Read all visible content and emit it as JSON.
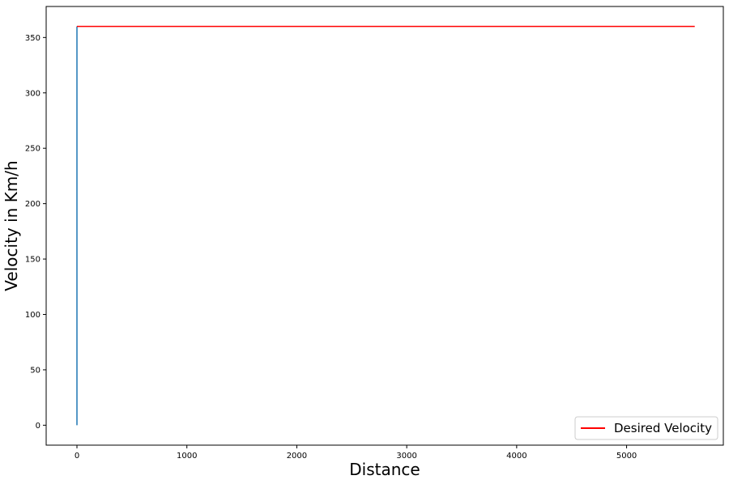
{
  "chart_data": {
    "type": "line",
    "title": "",
    "xlabel": "Distance",
    "ylabel": "Velocity in Km/h",
    "xlim": [
      -280,
      5880
    ],
    "ylim": [
      -18,
      378
    ],
    "x_ticks": [
      0,
      1000,
      2000,
      3000,
      4000,
      5000
    ],
    "y_ticks": [
      0,
      50,
      100,
      150,
      200,
      250,
      300,
      350
    ],
    "grid": false,
    "legend_position": "lower-right",
    "series": [
      {
        "color": "#1f77b4",
        "x": [
          0,
          0
        ],
        "y": [
          0,
          360
        ]
      },
      {
        "name": "Desired Velocity",
        "color": "#ff0000",
        "x": [
          0,
          5620
        ],
        "y": [
          360,
          360
        ]
      }
    ]
  }
}
